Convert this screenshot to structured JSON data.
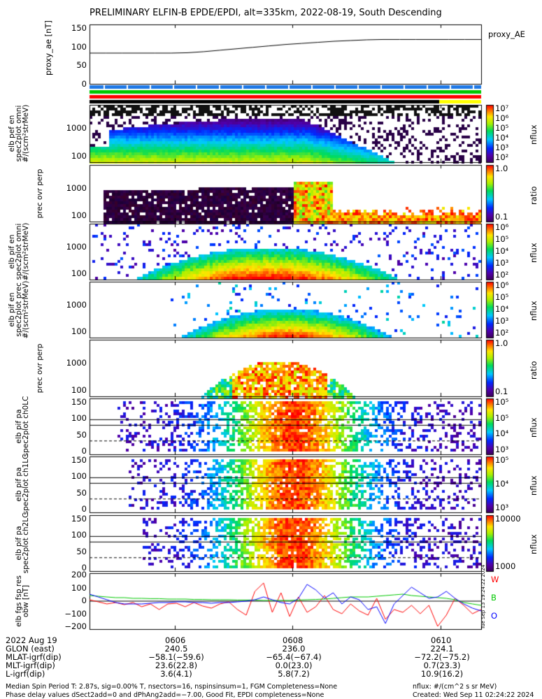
{
  "title": "PRELIMINARY ELFIN-B EPDE/EPDI, alt=335km, 2022-08-19, South Descending",
  "colors": {
    "blue": "#1e78e6",
    "green": "#00c800",
    "red": "#ff0000",
    "black": "#000000",
    "yellow": "#ffff00"
  },
  "chart_data": [
    {
      "type": "line",
      "panel": "proxy_ae",
      "ylabel": "proxy_ae [nT]",
      "yticks": [
        "150",
        "100",
        "50",
        "0"
      ],
      "ylim": [
        0,
        150
      ],
      "legend": "proxy_AE",
      "series": [
        {
          "name": "proxy_AE",
          "values": [
            78,
            78,
            78,
            78,
            78,
            78,
            79,
            82,
            86,
            90,
            94,
            98,
            102,
            105,
            108,
            111,
            113,
            115,
            116,
            116,
            116,
            116,
            116,
            116,
            116
          ]
        }
      ]
    },
    {
      "type": "heatmap",
      "panel": "elb_pef_en_spec2plot_omni",
      "ylabel": "elb pef en spec2plot omni #/(scm²strMeV)",
      "yticks": [
        "1000",
        "100"
      ],
      "colorbar_label": "nflux",
      "colorbar_ticks": [
        "10⁷",
        "10⁶",
        "10⁵",
        "10⁴",
        "10³",
        "10²"
      ]
    },
    {
      "type": "heatmap",
      "panel": "prec_ovr_perp_e",
      "ylabel": "prec ovr perp",
      "yticks": [
        "1000",
        "100"
      ],
      "colorbar_label": "ratio",
      "colorbar_ticks": [
        "1.0",
        "0.1"
      ]
    },
    {
      "type": "heatmap",
      "panel": "elb_pif_en_spec2plot_omni",
      "ylabel": "elb pif en spec2plot omni #/(scm²strMeV)",
      "yticks": [
        "1000",
        "100"
      ],
      "colorbar_label": "nflux",
      "colorbar_ticks": [
        "10⁶",
        "10⁵",
        "10⁴",
        "10³",
        "10²"
      ]
    },
    {
      "type": "heatmap",
      "panel": "elb_pif_en_spec2plot_prec",
      "ylabel": "elb pif en spec2plot prec #/(scm²strMeV)",
      "yticks": [
        "1000",
        "100"
      ],
      "colorbar_label": "nflux",
      "colorbar_ticks": [
        "10⁶",
        "10⁵",
        "10⁴",
        "10³",
        "10²"
      ]
    },
    {
      "type": "heatmap",
      "panel": "prec_ovr_perp_i",
      "ylabel": "prec ovr perp",
      "yticks": [
        "1000",
        "100"
      ],
      "colorbar_label": "ratio",
      "colorbar_ticks": [
        "1.0",
        "0.1"
      ]
    },
    {
      "type": "heatmap",
      "panel": "elb_pif_pa_spec2plot_ch0LC",
      "ylabel": "elb pif pa spec2plot ch0LC",
      "yticks": [
        "150",
        "100",
        "50",
        "0"
      ],
      "colorbar_label": "nflux",
      "colorbar_ticks": [
        "10⁵",
        "10⁵",
        "10⁴",
        "10³"
      ]
    },
    {
      "type": "heatmap",
      "panel": "elb_pif_pa_spec2plot_ch1LC",
      "ylabel": "elb pif pa spec2plot ch1LC",
      "yticks": [
        "150",
        "100",
        "50",
        "0"
      ],
      "colorbar_label": "nflux",
      "colorbar_ticks": [
        "10⁵",
        "10⁴",
        "10³"
      ]
    },
    {
      "type": "heatmap",
      "panel": "elb_pif_pa_spec2plot_ch2LC",
      "ylabel": "elb pif pa spec2plot ch2LC",
      "yticks": [
        "150",
        "100",
        "50",
        "0"
      ],
      "colorbar_label": "nflux",
      "colorbar_ticks": [
        "10000",
        "1000"
      ]
    },
    {
      "type": "line",
      "panel": "elb_fgs_fsp_res_obw",
      "ylabel": "elb fgs fsp res obw [nT]",
      "yticks": [
        "200",
        "100",
        "0",
        "−100",
        "−200"
      ],
      "ylim": [
        -200,
        200
      ],
      "legend": [
        "W",
        "B",
        "O"
      ],
      "series": [
        {
          "name": "W",
          "color": "#ff0000",
          "values": [
            10,
            -5,
            -20,
            -10,
            -25,
            -10,
            -40,
            -20,
            -60,
            -20,
            -15,
            -40,
            -10,
            -35,
            -50,
            -20,
            -5,
            -60,
            -100,
            70,
            130,
            -80,
            60,
            -110,
            30,
            -80,
            -40,
            40,
            -60,
            -90,
            -20,
            -70,
            -100,
            20,
            -130,
            -60,
            -80,
            -30,
            -90,
            -30,
            -180,
            -100,
            20,
            -30,
            -90,
            -60
          ]
        },
        {
          "name": "B",
          "color": "#00c800",
          "values": [
            40,
            35,
            30,
            25,
            25,
            20,
            20,
            18,
            18,
            15,
            15,
            15,
            12,
            12,
            10,
            10,
            10,
            8,
            8,
            8,
            5,
            5,
            5,
            5,
            8,
            10,
            12,
            15,
            20,
            25,
            30,
            30,
            30,
            35,
            40,
            45,
            50,
            40,
            35,
            30,
            25,
            20,
            10,
            -10,
            -20,
            -30
          ]
        },
        {
          "name": "O",
          "color": "#0000ff",
          "values": [
            50,
            30,
            10,
            -10,
            -20,
            -20,
            -20,
            -15,
            -10,
            -10,
            -5,
            -5,
            -10,
            -10,
            -15,
            -10,
            -10,
            -5,
            0,
            10,
            30,
            10,
            -10,
            -20,
            20,
            120,
            80,
            20,
            60,
            -20,
            30,
            10,
            -60,
            -40,
            -160,
            -20,
            40,
            100,
            60,
            20,
            30,
            70,
            20,
            -20,
            -50,
            -70
          ]
        }
      ]
    }
  ],
  "rotated_tag": "Tue Sep 13 19:24:22 2024",
  "xaxis": {
    "date": "2022 Aug 19",
    "rows": [
      "GLON (east)",
      "MLAT-igrf(dip)",
      "MLT-igrf(dip)",
      "L-igrf(dip)"
    ],
    "ticks": [
      {
        "time": "0606",
        "vals": [
          "240.5",
          "−58.1(−59.6)",
          "23.6(22.8)",
          "3.6(4.1)"
        ]
      },
      {
        "time": "0608",
        "vals": [
          "236.0",
          "−65.4(−67.4)",
          "0.0(23.0)",
          "5.8(7.2)"
        ]
      },
      {
        "time": "0610",
        "vals": [
          "224.1",
          "−72.2(−75.2)",
          "0.7(23.3)",
          "10.9(16.2)"
        ]
      }
    ]
  },
  "footer": {
    "left1": "Median Spin Period T: 2.87s, sig=0.00% T, nsectors=16, nspinsinsum=1, FGM Completeness=None",
    "left2": "Phase delay values dSect2add=0 and dPhAng2add=−7.00, Good Fit, EPDI completeness=None",
    "right1": "nflux: #/(cm^2 s sr MeV)",
    "right2": "Created: Wed Sep 11 02:24:22 2024"
  }
}
